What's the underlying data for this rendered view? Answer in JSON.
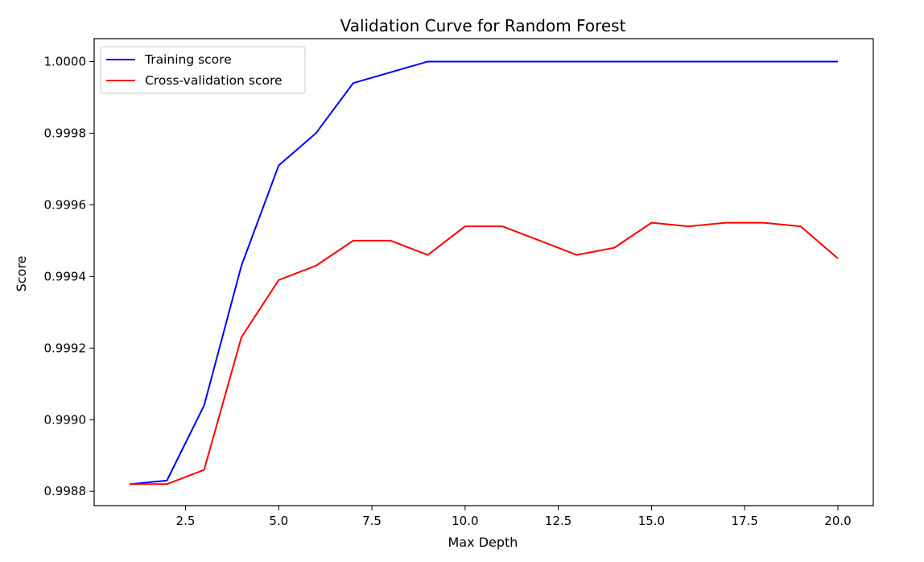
{
  "chart_data": {
    "type": "line",
    "title": "Validation Curve for Random Forest",
    "xlabel": "Max Depth",
    "ylabel": "Score",
    "xlim": [
      0.05,
      20.95
    ],
    "ylim": [
      0.99876,
      1.000064
    ],
    "xticks": [
      2.5,
      5.0,
      7.5,
      10.0,
      12.5,
      15.0,
      17.5,
      20.0
    ],
    "xtick_labels": [
      "2.5",
      "5.0",
      "7.5",
      "10.0",
      "12.5",
      "15.0",
      "17.5",
      "20.0"
    ],
    "yticks": [
      0.9988,
      0.999,
      0.9992,
      0.9994,
      0.9996,
      0.9998,
      1.0
    ],
    "ytick_labels": [
      "0.9988",
      "0.9990",
      "0.9992",
      "0.9994",
      "0.9996",
      "0.9998",
      "1.0000"
    ],
    "grid": false,
    "legend_position": "top-left",
    "x": [
      1,
      2,
      3,
      4,
      5,
      6,
      7,
      8,
      9,
      10,
      11,
      12,
      13,
      14,
      15,
      16,
      17,
      18,
      19,
      20
    ],
    "series": [
      {
        "name": "Training score",
        "color": "#0000ff",
        "values": [
          0.99882,
          0.99883,
          0.99904,
          0.99943,
          0.99971,
          0.9998,
          0.99994,
          0.99997,
          1.0,
          1.0,
          1.0,
          1.0,
          1.0,
          1.0,
          1.0,
          1.0,
          1.0,
          1.0,
          1.0,
          1.0
        ]
      },
      {
        "name": "Cross-validation score",
        "color": "#ff0000",
        "values": [
          0.99882,
          0.99882,
          0.99886,
          0.99923,
          0.99939,
          0.99943,
          0.9995,
          0.9995,
          0.99946,
          0.99954,
          0.99954,
          0.9995,
          0.99946,
          0.99948,
          0.99955,
          0.99954,
          0.99955,
          0.99955,
          0.99954,
          0.99945
        ]
      }
    ]
  }
}
